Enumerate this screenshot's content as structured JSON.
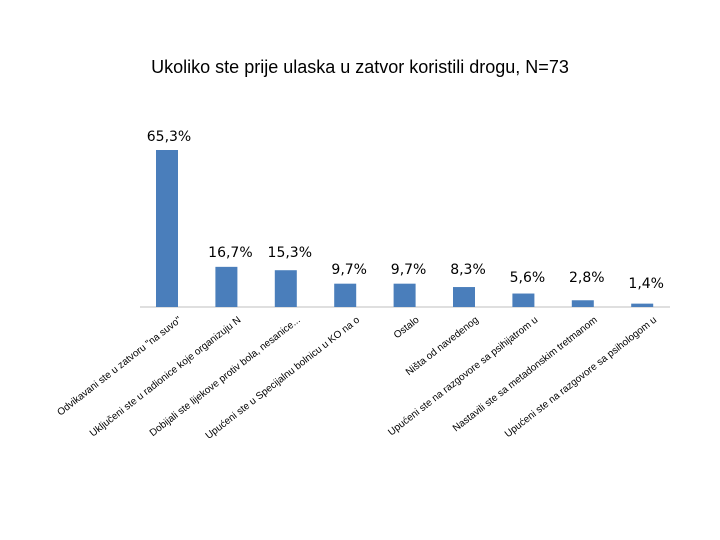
{
  "chart_data": {
    "type": "bar",
    "title": "Ukoliko ste prije ulaska u zatvor koristili drogu, N=73",
    "categories": [
      "Odvikavani ste u zatvoru \"na suvo\"",
      "Uključeni ste u radionice koje organizuju N",
      "Dobijali ste lijekove protiv bola, nesanice...",
      "Upućeni ste u Specijalnu bolnicu u KO na o",
      "Ostalo",
      "Ništa od navedenog",
      "Upućeni ste na razgovore sa psihijatrom u",
      "Nastavili ste sa metadonskim tretmanom",
      "Upućeni ste na razgovore sa psihologom u"
    ],
    "values": [
      65.3,
      16.7,
      15.3,
      9.7,
      9.7,
      8.3,
      5.6,
      2.8,
      1.4
    ],
    "value_labels": [
      "65,3%",
      "16,7%",
      "15,3%",
      "9,7%",
      "9,7%",
      "8,3%",
      "5,6%",
      "2,8%",
      "1,4%"
    ],
    "ylim": [
      0,
      70
    ],
    "grid": false,
    "legend": "none",
    "colors": {
      "bar": "#4a7ebb",
      "axis": "#bfbfbf"
    }
  }
}
